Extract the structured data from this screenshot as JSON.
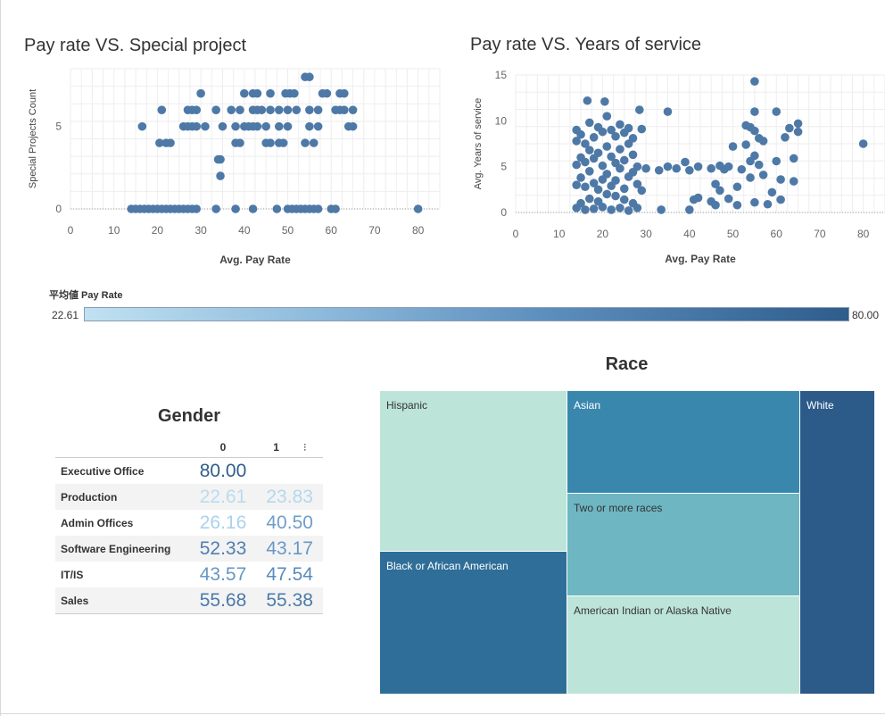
{
  "colors": {
    "mark": "#4e79a7",
    "grid": "#eeeeee",
    "legend_low": "#c0e1f2",
    "legend_high": "#2e5d8c"
  },
  "chart_data": [
    {
      "type": "scatter",
      "title": "Pay rate VS. Special project",
      "xlabel": "Avg. Pay Rate",
      "ylabel": "Special Projects Count",
      "xlim": [
        0,
        85
      ],
      "ylim": [
        0,
        8.5
      ],
      "x_ticks": [
        0,
        10,
        20,
        30,
        40,
        50,
        60,
        70,
        80
      ],
      "y_ticks": [
        0,
        5
      ],
      "grid": true,
      "points": [
        {
          "x": 14,
          "y": 0
        },
        {
          "x": 15,
          "y": 0
        },
        {
          "x": 16,
          "y": 0
        },
        {
          "x": 17,
          "y": 0
        },
        {
          "x": 18,
          "y": 0
        },
        {
          "x": 19,
          "y": 0
        },
        {
          "x": 20,
          "y": 0
        },
        {
          "x": 21,
          "y": 0
        },
        {
          "x": 22,
          "y": 0
        },
        {
          "x": 23,
          "y": 0
        },
        {
          "x": 24,
          "y": 0
        },
        {
          "x": 25,
          "y": 0
        },
        {
          "x": 26,
          "y": 0
        },
        {
          "x": 27,
          "y": 0
        },
        {
          "x": 28,
          "y": 0
        },
        {
          "x": 29,
          "y": 0
        },
        {
          "x": 33.5,
          "y": 0
        },
        {
          "x": 38,
          "y": 0
        },
        {
          "x": 42,
          "y": 0
        },
        {
          "x": 47.5,
          "y": 0
        },
        {
          "x": 50,
          "y": 0
        },
        {
          "x": 51,
          "y": 0
        },
        {
          "x": 52,
          "y": 0
        },
        {
          "x": 53,
          "y": 0
        },
        {
          "x": 54,
          "y": 0
        },
        {
          "x": 55,
          "y": 0
        },
        {
          "x": 56,
          "y": 0
        },
        {
          "x": 57,
          "y": 0
        },
        {
          "x": 60,
          "y": 0
        },
        {
          "x": 61,
          "y": 0
        },
        {
          "x": 80,
          "y": 0
        },
        {
          "x": 34.5,
          "y": 2
        },
        {
          "x": 34.5,
          "y": 3
        },
        {
          "x": 34,
          "y": 3
        },
        {
          "x": 20.5,
          "y": 4
        },
        {
          "x": 22,
          "y": 4
        },
        {
          "x": 23,
          "y": 4
        },
        {
          "x": 38,
          "y": 4
        },
        {
          "x": 39,
          "y": 4
        },
        {
          "x": 45,
          "y": 4
        },
        {
          "x": 46,
          "y": 4
        },
        {
          "x": 48,
          "y": 4
        },
        {
          "x": 49,
          "y": 4
        },
        {
          "x": 54,
          "y": 4
        },
        {
          "x": 56,
          "y": 4
        },
        {
          "x": 16.5,
          "y": 5
        },
        {
          "x": 26,
          "y": 5
        },
        {
          "x": 27,
          "y": 5
        },
        {
          "x": 28,
          "y": 5
        },
        {
          "x": 29,
          "y": 5
        },
        {
          "x": 31,
          "y": 5
        },
        {
          "x": 35,
          "y": 5
        },
        {
          "x": 38,
          "y": 5
        },
        {
          "x": 40,
          "y": 5
        },
        {
          "x": 41,
          "y": 5
        },
        {
          "x": 42,
          "y": 5
        },
        {
          "x": 43,
          "y": 5
        },
        {
          "x": 45,
          "y": 5
        },
        {
          "x": 48,
          "y": 5
        },
        {
          "x": 50,
          "y": 5
        },
        {
          "x": 55,
          "y": 5
        },
        {
          "x": 57,
          "y": 5
        },
        {
          "x": 64,
          "y": 5
        },
        {
          "x": 65,
          "y": 5
        },
        {
          "x": 21,
          "y": 6
        },
        {
          "x": 27,
          "y": 6
        },
        {
          "x": 28,
          "y": 6
        },
        {
          "x": 29,
          "y": 6
        },
        {
          "x": 33.5,
          "y": 6
        },
        {
          "x": 37,
          "y": 6
        },
        {
          "x": 39,
          "y": 6
        },
        {
          "x": 42,
          "y": 6
        },
        {
          "x": 43,
          "y": 6
        },
        {
          "x": 44,
          "y": 6
        },
        {
          "x": 46,
          "y": 6
        },
        {
          "x": 48,
          "y": 6
        },
        {
          "x": 50,
          "y": 6
        },
        {
          "x": 52,
          "y": 6
        },
        {
          "x": 55,
          "y": 6
        },
        {
          "x": 57,
          "y": 6
        },
        {
          "x": 61,
          "y": 6
        },
        {
          "x": 62,
          "y": 6
        },
        {
          "x": 63,
          "y": 6
        },
        {
          "x": 65,
          "y": 6
        },
        {
          "x": 30,
          "y": 7
        },
        {
          "x": 40,
          "y": 7
        },
        {
          "x": 42,
          "y": 7
        },
        {
          "x": 43,
          "y": 7
        },
        {
          "x": 46,
          "y": 7
        },
        {
          "x": 49.5,
          "y": 7
        },
        {
          "x": 50.5,
          "y": 7
        },
        {
          "x": 51.5,
          "y": 7
        },
        {
          "x": 58,
          "y": 7
        },
        {
          "x": 59,
          "y": 7
        },
        {
          "x": 62,
          "y": 7
        },
        {
          "x": 63,
          "y": 7
        },
        {
          "x": 54,
          "y": 8
        },
        {
          "x": 55,
          "y": 8
        }
      ]
    },
    {
      "type": "scatter",
      "title": "Pay rate VS. Years of service",
      "xlabel": "Avg. Pay Rate",
      "ylabel": "Avg. Years of service",
      "xlim": [
        0,
        85
      ],
      "ylim": [
        0,
        15
      ],
      "x_ticks": [
        0,
        10,
        20,
        30,
        40,
        50,
        60,
        70,
        80
      ],
      "y_ticks": [
        0,
        5,
        10,
        15
      ],
      "grid": true,
      "points": [
        {
          "x": 14,
          "y": 0.5
        },
        {
          "x": 15,
          "y": 1
        },
        {
          "x": 16,
          "y": 0.3
        },
        {
          "x": 17,
          "y": 1.5
        },
        {
          "x": 18,
          "y": 0.4
        },
        {
          "x": 19,
          "y": 1.2
        },
        {
          "x": 20,
          "y": 0.6
        },
        {
          "x": 21,
          "y": 2
        },
        {
          "x": 22,
          "y": 0.3
        },
        {
          "x": 23,
          "y": 1.8
        },
        {
          "x": 24,
          "y": 0.5
        },
        {
          "x": 25,
          "y": 1.4
        },
        {
          "x": 26,
          "y": 0.2
        },
        {
          "x": 27,
          "y": 1
        },
        {
          "x": 28,
          "y": 0.5
        },
        {
          "x": 14,
          "y": 3
        },
        {
          "x": 15,
          "y": 3.8
        },
        {
          "x": 16,
          "y": 2.8
        },
        {
          "x": 17,
          "y": 4.5
        },
        {
          "x": 18,
          "y": 3.2
        },
        {
          "x": 19,
          "y": 2.5
        },
        {
          "x": 20,
          "y": 3.6
        },
        {
          "x": 21,
          "y": 4.2
        },
        {
          "x": 22,
          "y": 2.9
        },
        {
          "x": 23,
          "y": 3.5
        },
        {
          "x": 24,
          "y": 4.8
        },
        {
          "x": 25,
          "y": 2.6
        },
        {
          "x": 26,
          "y": 3.9
        },
        {
          "x": 27,
          "y": 4.4
        },
        {
          "x": 28,
          "y": 3.1
        },
        {
          "x": 29,
          "y": 2.4
        },
        {
          "x": 14,
          "y": 5.2
        },
        {
          "x": 15,
          "y": 6
        },
        {
          "x": 16,
          "y": 5.5
        },
        {
          "x": 17,
          "y": 6.8
        },
        {
          "x": 18,
          "y": 5.9
        },
        {
          "x": 19,
          "y": 6.5
        },
        {
          "x": 20,
          "y": 5.1
        },
        {
          "x": 21,
          "y": 7.2
        },
        {
          "x": 22,
          "y": 6.1
        },
        {
          "x": 23,
          "y": 5.4
        },
        {
          "x": 24,
          "y": 6.9
        },
        {
          "x": 25,
          "y": 5.7
        },
        {
          "x": 26,
          "y": 7.5
        },
        {
          "x": 27,
          "y": 6.3
        },
        {
          "x": 28,
          "y": 5
        },
        {
          "x": 14,
          "y": 7.8
        },
        {
          "x": 15,
          "y": 8.5
        },
        {
          "x": 16,
          "y": 7.5
        },
        {
          "x": 18,
          "y": 8.2
        },
        {
          "x": 20,
          "y": 8.8
        },
        {
          "x": 22,
          "y": 9
        },
        {
          "x": 23,
          "y": 8.3
        },
        {
          "x": 25,
          "y": 8.7
        },
        {
          "x": 27,
          "y": 8.1
        },
        {
          "x": 14,
          "y": 9
        },
        {
          "x": 17,
          "y": 9.8
        },
        {
          "x": 19,
          "y": 9.3
        },
        {
          "x": 21,
          "y": 10.5
        },
        {
          "x": 24,
          "y": 9.6
        },
        {
          "x": 26,
          "y": 9.2
        },
        {
          "x": 29,
          "y": 9.1
        },
        {
          "x": 16.5,
          "y": 12.2
        },
        {
          "x": 20.5,
          "y": 12.1
        },
        {
          "x": 28.5,
          "y": 11.2
        },
        {
          "x": 33.5,
          "y": 0.3
        },
        {
          "x": 35,
          "y": 11
        },
        {
          "x": 30,
          "y": 4.8
        },
        {
          "x": 33,
          "y": 4.6
        },
        {
          "x": 35,
          "y": 5
        },
        {
          "x": 37,
          "y": 4.8
        },
        {
          "x": 39,
          "y": 5.5
        },
        {
          "x": 40,
          "y": 4.6
        },
        {
          "x": 42,
          "y": 5
        },
        {
          "x": 45,
          "y": 4.8
        },
        {
          "x": 47,
          "y": 5.1
        },
        {
          "x": 48,
          "y": 4.7
        },
        {
          "x": 49,
          "y": 5
        },
        {
          "x": 40,
          "y": 0.3
        },
        {
          "x": 41,
          "y": 1.4
        },
        {
          "x": 42,
          "y": 1.6
        },
        {
          "x": 45,
          "y": 1.2
        },
        {
          "x": 46,
          "y": 0.8
        },
        {
          "x": 46,
          "y": 3.1
        },
        {
          "x": 47,
          "y": 2.4
        },
        {
          "x": 49,
          "y": 1.5
        },
        {
          "x": 50,
          "y": 7.2
        },
        {
          "x": 51,
          "y": 2.8
        },
        {
          "x": 51,
          "y": 0.8
        },
        {
          "x": 52,
          "y": 4.7
        },
        {
          "x": 53,
          "y": 9.5
        },
        {
          "x": 53,
          "y": 7.4
        },
        {
          "x": 54,
          "y": 9.3
        },
        {
          "x": 54,
          "y": 5.6
        },
        {
          "x": 54,
          "y": 3.8
        },
        {
          "x": 55,
          "y": 14.3
        },
        {
          "x": 55,
          "y": 11
        },
        {
          "x": 55,
          "y": 8.9
        },
        {
          "x": 55,
          "y": 6.2
        },
        {
          "x": 55,
          "y": 1.1
        },
        {
          "x": 56,
          "y": 8.1
        },
        {
          "x": 56,
          "y": 5.2
        },
        {
          "x": 57,
          "y": 7.8
        },
        {
          "x": 57,
          "y": 4.1
        },
        {
          "x": 58,
          "y": 0.9
        },
        {
          "x": 59,
          "y": 2.2
        },
        {
          "x": 60,
          "y": 11
        },
        {
          "x": 61,
          "y": 3.6
        },
        {
          "x": 61,
          "y": 1.4
        },
        {
          "x": 62,
          "y": 8.2
        },
        {
          "x": 63,
          "y": 9.2
        },
        {
          "x": 64,
          "y": 5.9
        },
        {
          "x": 65,
          "y": 9.7
        },
        {
          "x": 65,
          "y": 8.8
        },
        {
          "x": 64,
          "y": 3.4
        },
        {
          "x": 60,
          "y": 5.6
        },
        {
          "x": 80,
          "y": 7.5
        }
      ]
    },
    {
      "type": "table",
      "title": "Gender",
      "columns": [
        "0",
        "1"
      ],
      "rows": [
        {
          "label": "Executive Office",
          "values": [
            "80.00",
            ""
          ],
          "color": [
            "#2e5d8c",
            ""
          ]
        },
        {
          "label": "Production",
          "values": [
            "22.61",
            "23.83"
          ],
          "color": [
            "#b9dcef",
            "#b3d8ee"
          ]
        },
        {
          "label": "Admin Offices",
          "values": [
            "26.16",
            "40.50"
          ],
          "color": [
            "#a9d2ec",
            "#6e9ec9"
          ]
        },
        {
          "label": "Software Engineering",
          "values": [
            "52.33",
            "43.17"
          ],
          "color": [
            "#4f7fb0",
            "#6798c6"
          ]
        },
        {
          "label": "IT/IS",
          "values": [
            "43.57",
            "47.54"
          ],
          "color": [
            "#6697c5",
            "#5a8bbd"
          ]
        },
        {
          "label": "Sales",
          "values": [
            "55.68",
            "55.38"
          ],
          "color": [
            "#4a79aa",
            "#4b7bab"
          ]
        }
      ]
    },
    {
      "type": "treemap",
      "title": "Race",
      "items": [
        {
          "label": "Hispanic",
          "color": "#bde4d9",
          "text_color": "#333333"
        },
        {
          "label": "Black or African American",
          "color": "#2f6e98",
          "text_color": "#ffffff"
        },
        {
          "label": "Asian",
          "color": "#3a87ae",
          "text_color": "#ffffff"
        },
        {
          "label": "Two or more races",
          "color": "#6db6c2",
          "text_color": "#333333"
        },
        {
          "label": "American Indian or Alaska Native",
          "color": "#bde4d9",
          "text_color": "#333333"
        },
        {
          "label": "White",
          "color": "#2c5a89",
          "text_color": "#ffffff"
        }
      ]
    }
  ],
  "legend": {
    "title": "平均値 Pay Rate",
    "min_label": "22.61",
    "max_label": "80.00"
  },
  "sort_icon": "sort-descending-icon"
}
